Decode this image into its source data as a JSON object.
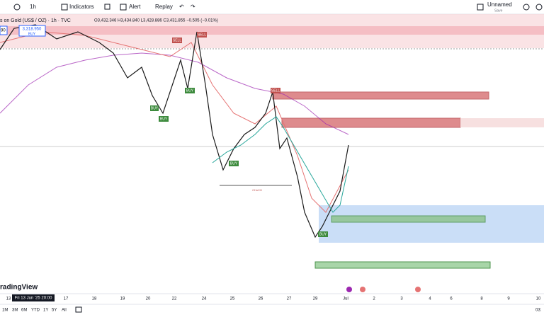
{
  "toolbar": {
    "interval": "1h",
    "indicators": "Indicators",
    "alert": "Alert",
    "replay": "Replay",
    "layout": "Unnamed",
    "save": "Save"
  },
  "legend": {
    "symbol": "s on Gold (US$ / OZ) · 1h · TVC",
    "ohlc": "O3,432.346 H3,434.840 L3,428.886 C3,431.855 −0.505 (−0.01%)"
  },
  "price_box": {
    "price": "3,318.950",
    "side": "BUY",
    "left": "90"
  },
  "signals": [
    "SELL",
    "SELL",
    "SELL",
    "BUY",
    "BUY",
    "BUY",
    "BUY",
    "BUY"
  ],
  "annotation": "CHoCH",
  "brand": "radingView",
  "x_labels": [
    "13",
    "17",
    "18",
    "19",
    "20",
    "22",
    "24",
    "25",
    "26",
    "27",
    "29",
    "Jul",
    "2",
    "3",
    "4",
    "6",
    "8",
    "9",
    "10"
  ],
  "crosshair_label": "Fri 13 Jun '25  20:00",
  "ranges": [
    "1M",
    "3M",
    "6M",
    "YTD",
    "1Y",
    "5Y",
    "All"
  ],
  "clock": "03:"
}
